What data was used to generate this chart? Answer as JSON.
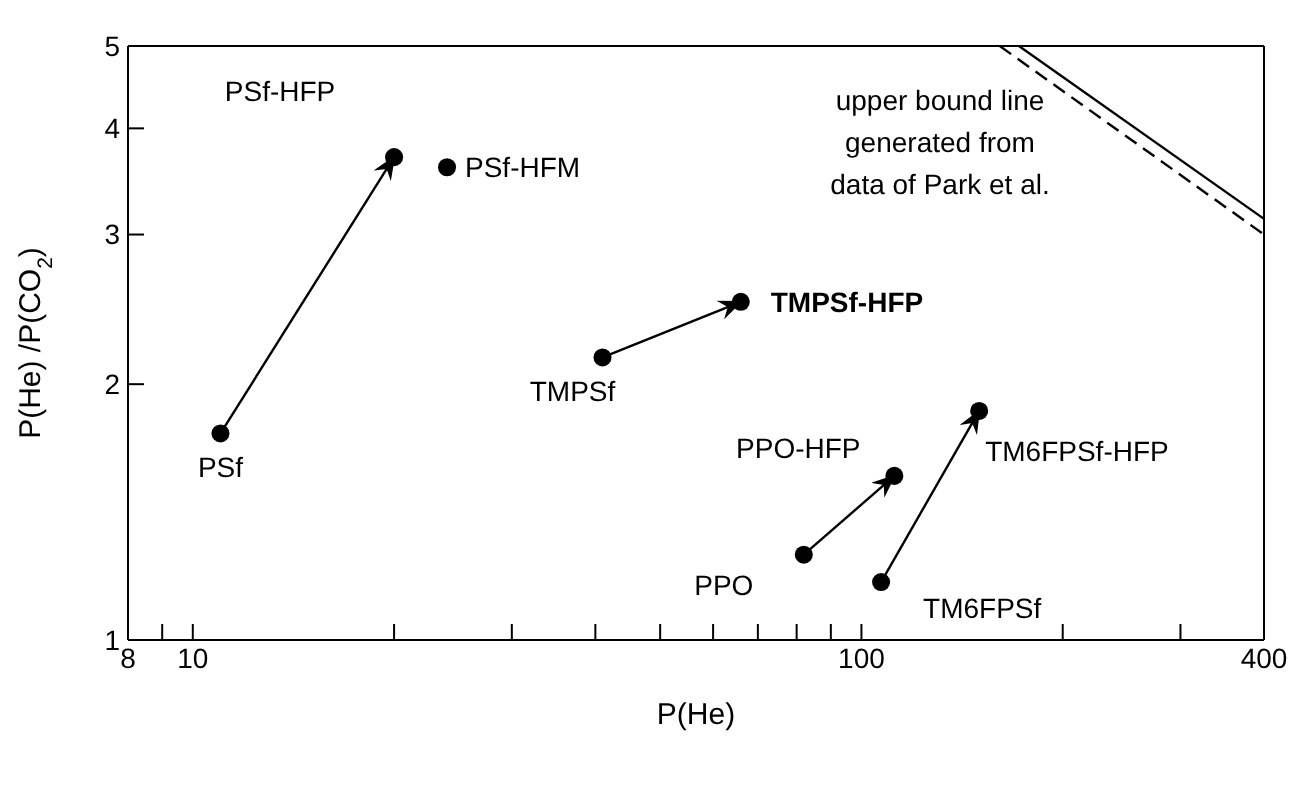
{
  "chart_data": {
    "type": "scatter",
    "xlabel": "P(He)",
    "ylabel": "P(He) /P(CO$_{2}$)",
    "log": "xy",
    "grid": false,
    "xlim": [
      8,
      400
    ],
    "xticks": [
      8,
      {
        "value": 9,
        "label": null
      },
      10,
      {
        "value": 20,
        "label": null
      },
      {
        "value": 30,
        "label": null
      },
      {
        "value": 40,
        "label": null
      },
      {
        "value": 50,
        "label": null
      },
      {
        "value": 60,
        "label": null
      },
      {
        "value": 70,
        "label": null
      },
      {
        "value": 80,
        "label": null
      },
      {
        "value": 90,
        "label": null
      },
      100,
      {
        "value": 200,
        "label": null
      },
      {
        "value": 300,
        "label": null
      },
      400
    ],
    "ylim": [
      1,
      5
    ],
    "yticks": [
      1,
      2,
      3,
      4,
      5
    ],
    "annotations": [
      "upper bound line\ngenerated from\ndata of Park et al."
    ],
    "series": [
      {
        "name": "PSf",
        "type": "scatter",
        "marker": "circle",
        "color": "#000000",
        "x": [
          11
        ],
        "values": [
          1.75
        ]
      },
      {
        "name": "PSf-HFP",
        "type": "scatter",
        "marker": "circle",
        "color": "#000000",
        "x": [
          20
        ],
        "values": [
          3.7
        ]
      },
      {
        "name": "PSf-HFM",
        "type": "scatter",
        "marker": "circle",
        "color": "#000000",
        "x": [
          24
        ],
        "values": [
          3.6
        ]
      },
      {
        "name": "TMPSf",
        "type": "scatter",
        "marker": "circle",
        "color": "#000000",
        "x": [
          41
        ],
        "values": [
          2.15
        ]
      },
      {
        "name": "TMPSf-HFP",
        "type": "scatter",
        "marker": "circle",
        "color": "#000000",
        "x": [
          66
        ],
        "values": [
          2.5
        ]
      },
      {
        "name": "PPO",
        "type": "scatter",
        "marker": "circle",
        "color": "#000000",
        "x": [
          82
        ],
        "values": [
          1.26
        ]
      },
      {
        "name": "PPO-HFP",
        "type": "scatter",
        "marker": "circle",
        "color": "#000000",
        "x": [
          112
        ],
        "values": [
          1.56
        ]
      },
      {
        "name": "TM6FPSf",
        "type": "scatter",
        "marker": "circle",
        "color": "#000000",
        "x": [
          107
        ],
        "values": [
          1.17
        ]
      },
      {
        "name": "TM6FPSf-HFP",
        "type": "scatter",
        "marker": "circle",
        "color": "#000000",
        "x": [
          150
        ],
        "values": [
          1.86
        ]
      },
      {
        "type": "line",
        "marker": "none",
        "line_style": "solid",
        "color": "#000000",
        "x": [
          11,
          20
        ],
        "values": [
          1.75,
          3.7
        ]
      },
      {
        "type": "line",
        "marker": "none",
        "line_style": "solid",
        "color": "#000000",
        "x": [
          41,
          66
        ],
        "values": [
          2.15,
          2.5
        ]
      },
      {
        "type": "line",
        "marker": "none",
        "line_style": "solid",
        "color": "#000000",
        "x": [
          82,
          112
        ],
        "values": [
          1.26,
          1.56
        ]
      },
      {
        "type": "line",
        "marker": "none",
        "line_style": "solid",
        "color": "#000000",
        "x": [
          107,
          150
        ],
        "values": [
          1.17,
          1.86
        ]
      },
      {
        "type": "line",
        "marker": "none",
        "line_style": "solid",
        "color": "#000000",
        "x": [
          172,
          400
        ],
        "values": [
          5,
          3.13
        ]
      },
      {
        "type": "line",
        "marker": "none",
        "line_style": "dashed",
        "color": "#000000",
        "x": [
          161,
          400
        ],
        "values": [
          5,
          3.0
        ]
      }
    ]
  }
}
